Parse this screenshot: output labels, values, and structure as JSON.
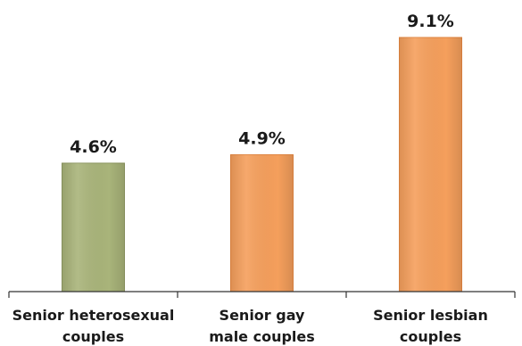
{
  "chart_data": {
    "type": "bar",
    "categories": [
      [
        "Senior heterosexual",
        "couples"
      ],
      [
        "Senior gay",
        "male couples"
      ],
      [
        "Senior lesbian",
        "couples"
      ]
    ],
    "values": [
      4.6,
      4.9,
      9.1
    ],
    "value_labels": [
      "4.6%",
      "4.9%",
      "9.1%"
    ],
    "colors": [
      "#a9b47a",
      "#f59f5c",
      "#f59f5c"
    ],
    "ylim": [
      0,
      9.1
    ],
    "grid": false,
    "legend": "none"
  }
}
